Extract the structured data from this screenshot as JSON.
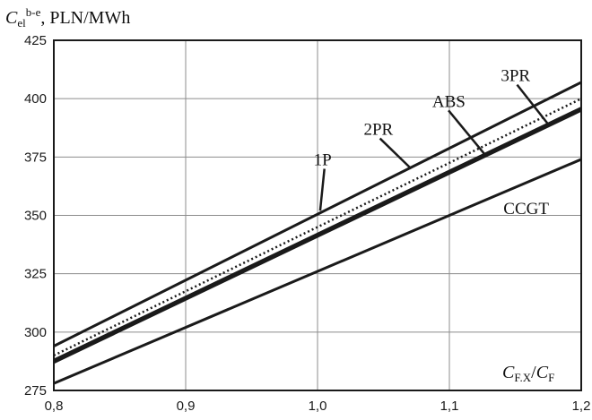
{
  "chart_data": {
    "type": "line",
    "ylabel": {
      "main": "C",
      "sub": "el",
      "sup": "b-e",
      "unit": ", PLN/MWh"
    },
    "xlabel": {
      "main": "C",
      "sub": "F.X",
      "slash": "/",
      "main2": "C",
      "sub2": "F"
    },
    "xlim": [
      0.8,
      1.2
    ],
    "ylim": [
      275,
      425
    ],
    "grid": true,
    "x_ticks": [
      {
        "value": 0.8,
        "label": "0,8"
      },
      {
        "value": 0.9,
        "label": "0,9"
      },
      {
        "value": 1.0,
        "label": "1,0"
      },
      {
        "value": 1.1,
        "label": "1,1"
      },
      {
        "value": 1.2,
        "label": "1,2"
      }
    ],
    "y_ticks": [
      {
        "value": 275,
        "label": "275"
      },
      {
        "value": 300,
        "label": "300"
      },
      {
        "value": 325,
        "label": "325"
      },
      {
        "value": 350,
        "label": "350"
      },
      {
        "value": 375,
        "label": "375"
      },
      {
        "value": 400,
        "label": "400"
      },
      {
        "value": 425,
        "label": "425"
      }
    ],
    "series": [
      {
        "name": "1P",
        "style": "solid",
        "x": [
          0.8,
          1.2
        ],
        "y": [
          294,
          407
        ]
      },
      {
        "name": "ABS",
        "style": "dotted",
        "x": [
          0.8,
          1.2
        ],
        "y": [
          290,
          400
        ]
      },
      {
        "name": "2PR",
        "style": "solid",
        "x": [
          0.8,
          1.2
        ],
        "y": [
          288,
          396
        ]
      },
      {
        "name": "3PR",
        "style": "solid",
        "x": [
          0.8,
          1.2
        ],
        "y": [
          287,
          395
        ]
      },
      {
        "name": "CCGT",
        "style": "solid",
        "x": [
          0.8,
          1.2
        ],
        "y": [
          278,
          374
        ]
      }
    ],
    "annotations": [
      {
        "text": "3PR",
        "label_at": [
          1.139,
          407.5
        ],
        "arrow_to": [
          1.175,
          389
        ]
      },
      {
        "text": "ABS",
        "label_at": [
          1.087,
          396.5
        ],
        "arrow_to": [
          1.127,
          376
        ]
      },
      {
        "text": "2PR",
        "label_at": [
          1.035,
          384.5
        ],
        "arrow_to": [
          1.071,
          370
        ]
      },
      {
        "text": "1P",
        "label_at": [
          0.997,
          371.5
        ],
        "arrow_to": [
          1.002,
          352
        ]
      },
      {
        "text": "CCGT",
        "label_at": [
          1.141,
          350.5
        ],
        "arrow_to": null
      }
    ],
    "colors": {
      "line": "#1a1a1a",
      "grid": "#8c8c8c",
      "frame": "#1a1a1a"
    }
  }
}
